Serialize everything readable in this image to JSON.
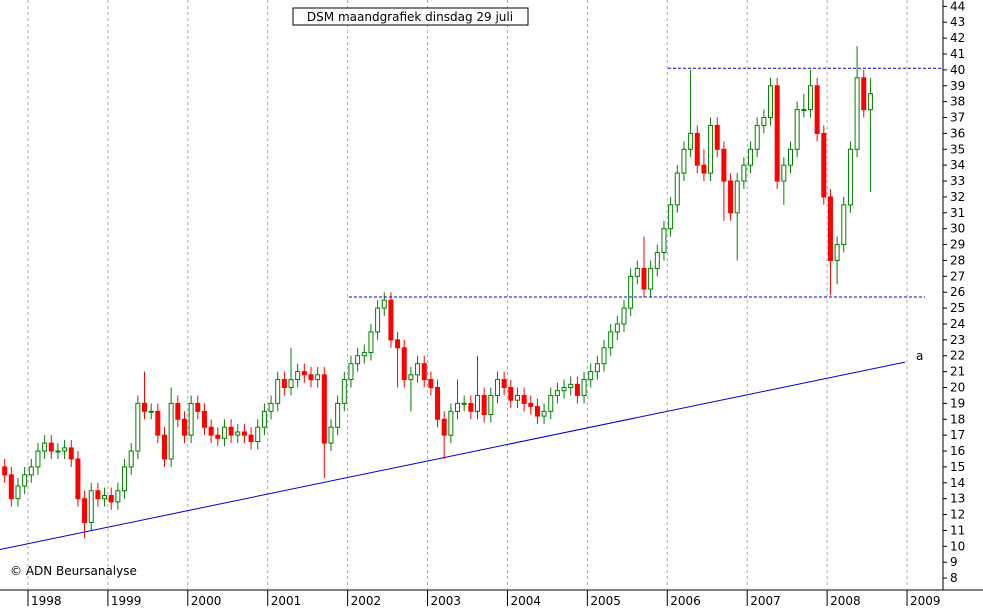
{
  "chart_data": {
    "type": "candlestick",
    "title": "DSM maandgrafiek dinsdag 29 juli",
    "footer": "© ADN Beursanalyse",
    "annotation": "a",
    "up_color": "#008000",
    "down_color": "#ff0000",
    "line_color": "#0000cc",
    "grid": true,
    "categories": [
      null,
      null,
      null,
      null,
      null,
      null,
      null,
      null,
      null,
      null,
      null,
      null,
      null,
      null,
      null,
      null,
      null,
      null,
      null,
      null,
      null,
      null,
      null,
      null,
      null,
      null,
      null,
      null,
      null,
      null,
      null,
      null,
      null,
      null,
      null,
      null,
      null,
      null,
      null,
      null,
      null,
      null,
      null,
      null,
      null,
      null,
      null,
      null,
      null,
      null,
      null,
      null,
      null,
      null,
      null,
      null,
      null,
      null,
      null,
      null,
      null,
      null,
      null,
      null,
      null,
      null,
      null,
      null,
      null,
      null,
      null,
      null,
      null,
      null,
      null,
      null,
      null,
      null,
      null,
      null,
      null,
      null,
      null,
      null,
      null,
      null,
      null,
      null,
      null,
      null,
      null,
      null,
      null,
      null,
      null,
      null,
      null,
      null,
      null,
      null,
      null,
      null,
      null,
      null,
      null,
      null,
      null,
      null,
      null,
      null,
      null,
      null,
      null,
      null,
      null,
      null,
      null,
      null,
      null,
      null,
      null,
      null,
      null,
      null,
      null,
      null,
      null,
      null,
      null,
      null,
      null
    ],
    "ohlc": [
      [
        15,
        15.5,
        14,
        14.5
      ],
      [
        14.5,
        15,
        12.5,
        13
      ],
      [
        13,
        14.3,
        12.5,
        13.8
      ],
      [
        13.8,
        15,
        13.3,
        14.5
      ],
      [
        14.5,
        15.5,
        14,
        15
      ],
      [
        15,
        16.5,
        14.5,
        16
      ],
      [
        16,
        17,
        15.5,
        16.5
      ],
      [
        16.5,
        17,
        15.5,
        16
      ],
      [
        16,
        16.5,
        15.5,
        16
      ],
      [
        16,
        16.7,
        15.5,
        16.2
      ],
      [
        16.2,
        16.7,
        15,
        15.5
      ],
      [
        15.5,
        16,
        12.5,
        13
      ],
      [
        13,
        13.5,
        10.5,
        11.5
      ],
      [
        11.5,
        14,
        11,
        13.5
      ],
      [
        13.5,
        14,
        12.5,
        13
      ],
      [
        13,
        13.7,
        12.5,
        13.2
      ],
      [
        13.2,
        13.7,
        12.3,
        12.8
      ],
      [
        12.8,
        14,
        12.3,
        13.5
      ],
      [
        13.5,
        15.5,
        13,
        15
      ],
      [
        15,
        16.5,
        14.5,
        16
      ],
      [
        16,
        19.5,
        15.5,
        19
      ],
      [
        19,
        21,
        18,
        18.5
      ],
      [
        18.5,
        19,
        18,
        18.5
      ],
      [
        18.5,
        19,
        16.5,
        17
      ],
      [
        17,
        17.5,
        15,
        15.5
      ],
      [
        15.5,
        20,
        15,
        19
      ],
      [
        19,
        19.5,
        17.5,
        18
      ],
      [
        18,
        18.5,
        16.5,
        17
      ],
      [
        17,
        19.5,
        16.5,
        19
      ],
      [
        19,
        19.5,
        18,
        18.5
      ],
      [
        18.5,
        19,
        17,
        17.5
      ],
      [
        17.5,
        18,
        16.5,
        17
      ],
      [
        17,
        17.5,
        16.3,
        16.8
      ],
      [
        16.8,
        18,
        16.3,
        17.5
      ],
      [
        17.5,
        18,
        16.5,
        17
      ],
      [
        17,
        17.7,
        16.5,
        17.2
      ],
      [
        17.2,
        17.7,
        16.5,
        17
      ],
      [
        17,
        17.5,
        16.1,
        16.6
      ],
      [
        16.6,
        18,
        16.1,
        17.5
      ],
      [
        17.5,
        19,
        17,
        18.5
      ],
      [
        18.5,
        19.5,
        18,
        19
      ],
      [
        19,
        21,
        18.5,
        20.5
      ],
      [
        20.5,
        21,
        19.5,
        20
      ],
      [
        20,
        22.5,
        19.5,
        20.5
      ],
      [
        20.5,
        21.5,
        20,
        21
      ],
      [
        21,
        21.5,
        20.3,
        20.8
      ],
      [
        20.8,
        21.3,
        20,
        20.5
      ],
      [
        20.5,
        21.3,
        20,
        20.8
      ],
      [
        20.8,
        21.3,
        14.3,
        16.5
      ],
      [
        16.5,
        18,
        16,
        17.5
      ],
      [
        17.5,
        19.5,
        17,
        19
      ],
      [
        19,
        21,
        18.5,
        20.5
      ],
      [
        20.5,
        22,
        20,
        21.5
      ],
      [
        21.5,
        22.5,
        21,
        22
      ],
      [
        22,
        22.7,
        21.5,
        22.2
      ],
      [
        22.2,
        24,
        21.7,
        23.5
      ],
      [
        23.5,
        25.5,
        23,
        25
      ],
      [
        25,
        26,
        24.5,
        25.5
      ],
      [
        25.5,
        26,
        22.5,
        23
      ],
      [
        23,
        23.5,
        20,
        22.5
      ],
      [
        22.5,
        23,
        20,
        20.5
      ],
      [
        20.5,
        21.3,
        18.5,
        20.8
      ],
      [
        20.8,
        22,
        20.3,
        21.5
      ],
      [
        21.5,
        22,
        20,
        20.5
      ],
      [
        20.5,
        21,
        19.5,
        20
      ],
      [
        20,
        20.5,
        17.5,
        18
      ],
      [
        18,
        18.5,
        15.5,
        17
      ],
      [
        17,
        19,
        16.5,
        18.5
      ],
      [
        18.5,
        20.5,
        18,
        19
      ],
      [
        19,
        19.5,
        18.5,
        19
      ],
      [
        19,
        19.5,
        18,
        18.5
      ],
      [
        18.5,
        22,
        18,
        19.5
      ],
      [
        19.5,
        20,
        17.8,
        18.3
      ],
      [
        18.3,
        20,
        17.8,
        19.5
      ],
      [
        19.5,
        21,
        19,
        20.5
      ],
      [
        20.5,
        21,
        19.5,
        20
      ],
      [
        20,
        20.5,
        18.7,
        19.2
      ],
      [
        19.2,
        20,
        18.7,
        19.5
      ],
      [
        19.5,
        20,
        18.5,
        19
      ],
      [
        19,
        19.5,
        18.3,
        18.8
      ],
      [
        18.8,
        19.3,
        17.7,
        18.2
      ],
      [
        18.2,
        19,
        17.7,
        18.5
      ],
      [
        18.5,
        20,
        18,
        19.5
      ],
      [
        19.5,
        20.3,
        19,
        19.8
      ],
      [
        19.8,
        20.5,
        19.3,
        20
      ],
      [
        20,
        20.7,
        19.5,
        20.2
      ],
      [
        20.2,
        20.7,
        19,
        19.5
      ],
      [
        19.5,
        21,
        19,
        20.5
      ],
      [
        20.5,
        21.5,
        20,
        21
      ],
      [
        21,
        22,
        20.5,
        21.5
      ],
      [
        21.5,
        23,
        21,
        22.5
      ],
      [
        22.5,
        24,
        22,
        23.5
      ],
      [
        23.5,
        24.5,
        23,
        24
      ],
      [
        24,
        25.5,
        23.5,
        25
      ],
      [
        25,
        27.5,
        24.5,
        27
      ],
      [
        27,
        28,
        26.5,
        27.5
      ],
      [
        27.5,
        29.5,
        25.7,
        26.2
      ],
      [
        26.2,
        28,
        25.7,
        27.5
      ],
      [
        27.5,
        29,
        27,
        28.5
      ],
      [
        28.5,
        30.5,
        28,
        30
      ],
      [
        30,
        32,
        29.5,
        31.5
      ],
      [
        31.5,
        34,
        31,
        33.5
      ],
      [
        33.5,
        35.5,
        33,
        35
      ],
      [
        35,
        40,
        34.5,
        36
      ],
      [
        36,
        36.5,
        33.5,
        34
      ],
      [
        34,
        35,
        33,
        33.5
      ],
      [
        33.5,
        37,
        33,
        36.5
      ],
      [
        36.5,
        37,
        34.5,
        35
      ],
      [
        35,
        35.5,
        30.5,
        33
      ],
      [
        33,
        33.5,
        30.5,
        31
      ],
      [
        31,
        33.5,
        28,
        33
      ],
      [
        33,
        34.5,
        32.5,
        34
      ],
      [
        34,
        35.5,
        33.5,
        35
      ],
      [
        35,
        37,
        34.5,
        36.5
      ],
      [
        36.5,
        37.5,
        36,
        37
      ],
      [
        37,
        39.5,
        36.5,
        39
      ],
      [
        39,
        39.5,
        32.5,
        33
      ],
      [
        33,
        34.5,
        31.5,
        34
      ],
      [
        34,
        35.5,
        33.5,
        35
      ],
      [
        35,
        38,
        34.5,
        37.5
      ],
      [
        37.5,
        38.5,
        37,
        37.5
      ],
      [
        37.5,
        40,
        37,
        39
      ],
      [
        39,
        39.5,
        35.5,
        36
      ],
      [
        36,
        36.5,
        31.5,
        32
      ],
      [
        32,
        32.5,
        25.8,
        28
      ],
      [
        28,
        29.5,
        26.5,
        29
      ],
      [
        29,
        32,
        28.5,
        31.5
      ],
      [
        31.5,
        35.5,
        31,
        35
      ],
      [
        35,
        41.5,
        34.5,
        39.5
      ],
      [
        39.5,
        40,
        37,
        37.5
      ],
      [
        37.5,
        39.5,
        32.3,
        38.5
      ]
    ],
    "xlim": [
      -0.7,
      140.9
    ],
    "xticks": [
      {
        "value": 3.5,
        "label": "1998"
      },
      {
        "value": 15.5,
        "label": "1999"
      },
      {
        "value": 27.5,
        "label": "2000"
      },
      {
        "value": 39.5,
        "label": "2001"
      },
      {
        "value": 51.5,
        "label": "2002"
      },
      {
        "value": 63.5,
        "label": "2003"
      },
      {
        "value": 75.5,
        "label": "2004"
      },
      {
        "value": 87.5,
        "label": "2005"
      },
      {
        "value": 99.5,
        "label": "2006"
      },
      {
        "value": 111.5,
        "label": "2007"
      },
      {
        "value": 123.5,
        "label": "2008"
      },
      {
        "value": 135.5,
        "label": "2009"
      }
    ],
    "ylim": [
      7.25,
      44.4
    ],
    "yticks": [
      8,
      9,
      10,
      11,
      12,
      13,
      14,
      15,
      16,
      17,
      18,
      19,
      20,
      21,
      22,
      23,
      24,
      25,
      26,
      27,
      28,
      29,
      30,
      31,
      32,
      33,
      34,
      35,
      36,
      37,
      38,
      39,
      40,
      41,
      42,
      43,
      44
    ],
    "trendline": {
      "x": [
        -0.7,
        135.2
      ],
      "y": [
        9.8,
        21.6
      ]
    },
    "hlines": [
      {
        "x": [
          99.6,
          140.9
        ],
        "y": 40.1
      },
      {
        "x": [
          51.7,
          138.2
        ],
        "y": 25.7
      }
    ]
  }
}
